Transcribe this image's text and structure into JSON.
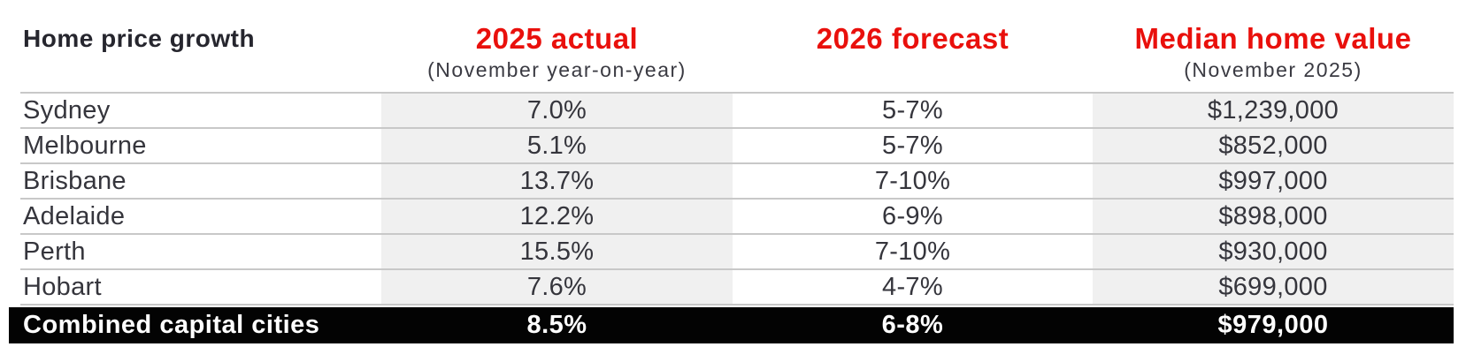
{
  "chart_data": {
    "type": "table",
    "title": "Home price growth",
    "columns": [
      {
        "label": "Home price growth",
        "sublabel": ""
      },
      {
        "label": "2025 actual",
        "sublabel": "(November year-on-year)"
      },
      {
        "label": "2026 forecast",
        "sublabel": ""
      },
      {
        "label": "Median home value",
        "sublabel": "(November 2025)"
      }
    ],
    "rows": [
      {
        "city": "Sydney",
        "actual_2025": "7.0%",
        "forecast_2026": "5-7%",
        "median_home_value": "$1,239,000"
      },
      {
        "city": "Melbourne",
        "actual_2025": "5.1%",
        "forecast_2026": "5-7%",
        "median_home_value": "$852,000"
      },
      {
        "city": "Brisbane",
        "actual_2025": "13.7%",
        "forecast_2026": "7-10%",
        "median_home_value": "$997,000"
      },
      {
        "city": "Adelaide",
        "actual_2025": "12.2%",
        "forecast_2026": "6-9%",
        "median_home_value": "$898,000"
      },
      {
        "city": "Perth",
        "actual_2025": "15.5%",
        "forecast_2026": "7-10%",
        "median_home_value": "$930,000"
      },
      {
        "city": "Hobart",
        "actual_2025": "7.6%",
        "forecast_2026": "4-7%",
        "median_home_value": "$699,000"
      }
    ],
    "summary_row": {
      "city": "Combined capital cities",
      "actual_2025": "8.5%",
      "forecast_2026": "6-8%",
      "median_home_value": "$979,000"
    },
    "layout": {
      "shaded_columns": [
        "2025 actual",
        "Median home value"
      ],
      "gridlines": "horizontal-only",
      "legend": "none"
    }
  },
  "colors": {
    "header_accent_red": "#e9100c",
    "text_dark": "#35353c",
    "row_divider": "#c8c8c8",
    "shaded_column_bg": "#f0f0f0",
    "summary_row_bg": "#030303",
    "summary_row_text": "#ffffff",
    "page_bg": "#ffffff"
  }
}
